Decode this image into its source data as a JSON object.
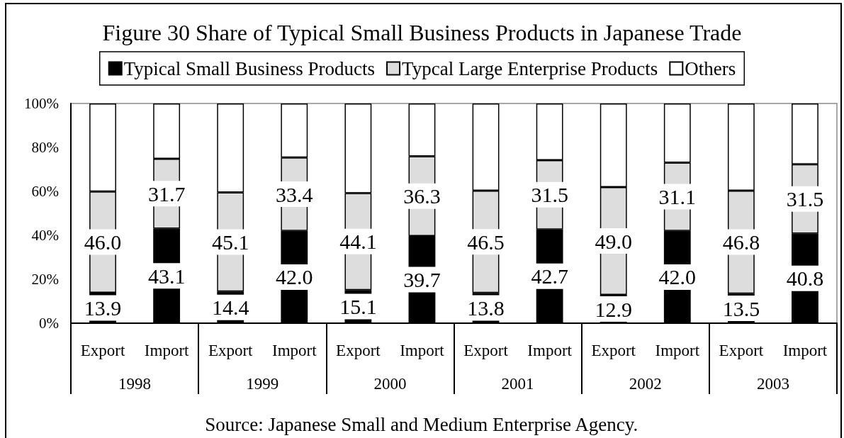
{
  "chart_data": {
    "type": "bar",
    "title": "Figure 30 Share of Typical Small Business Products in Japanese Trade",
    "categories": [
      "Export",
      "Import",
      "Export",
      "Import",
      "Export",
      "Import",
      "Export",
      "Import",
      "Export",
      "Import",
      "Export",
      "Import"
    ],
    "series": [
      {
        "name": "Typical Small Business Products",
        "color": "#000000",
        "values": [
          13.9,
          43.1,
          14.4,
          42.0,
          15.1,
          39.7,
          13.8,
          42.7,
          12.9,
          42.0,
          13.5,
          40.8
        ],
        "value_labels": [
          "13.9",
          "43.1",
          "14.4",
          "42.0",
          "15.1",
          "39.7",
          "13.8",
          "42.7",
          "12.9",
          "42.0",
          "13.5",
          "40.8"
        ]
      },
      {
        "name": "Typcal Large Enterprise Products",
        "color": "#dddddd",
        "values": [
          46.0,
          31.7,
          45.1,
          33.4,
          44.1,
          36.3,
          46.5,
          31.5,
          49.0,
          31.1,
          46.8,
          31.5
        ],
        "value_labels": [
          "46.0",
          "31.7",
          "45.1",
          "33.4",
          "44.1",
          "36.3",
          "46.5",
          "31.5",
          "49.0",
          "31.1",
          "46.8",
          "31.5"
        ]
      },
      {
        "name": "Others",
        "color": "#ffffff",
        "values": [
          40.1,
          25.2,
          40.5,
          24.6,
          40.8,
          24.0,
          39.7,
          25.8,
          38.1,
          26.9,
          39.7,
          27.7
        ]
      }
    ],
    "stacked": true,
    "ylim": [
      0,
      100
    ],
    "yticks": [
      {
        "value": 0,
        "label": "0%"
      },
      {
        "value": 20,
        "label": "20%"
      },
      {
        "value": 40,
        "label": "40%"
      },
      {
        "value": 60,
        "label": "60%"
      },
      {
        "value": 80,
        "label": "80%"
      },
      {
        "value": 100,
        "label": "100%"
      }
    ],
    "legend": "top",
    "annotations": [
      "1998",
      "1999",
      "2000",
      "2001",
      "2002",
      "2003",
      "Source: Japanese Small and Medium Enterprise Agency."
    ]
  }
}
